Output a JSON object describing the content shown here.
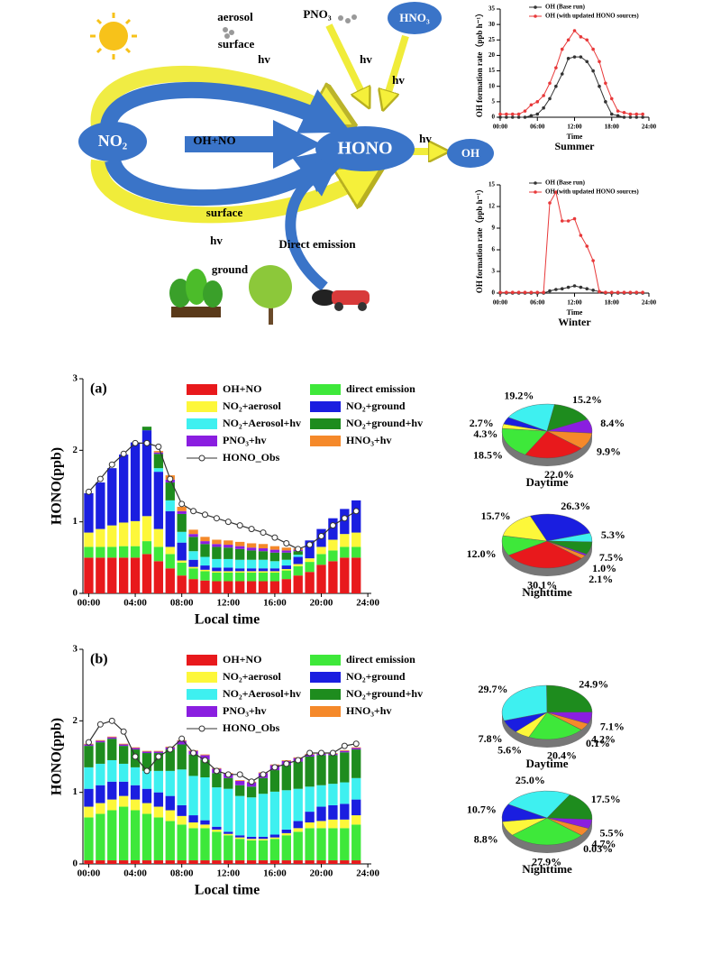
{
  "diagram": {
    "labels": [
      "aerosol",
      "surface",
      "PNO₃",
      "HNO₃",
      "hv",
      "hv",
      "hv",
      "NO₂",
      "OH+NO",
      "HONO",
      "hv",
      "OH",
      "surface",
      "hv",
      "Direct emission",
      "ground"
    ]
  },
  "chart_data": [
    {
      "type": "line",
      "title": "Summer",
      "x_label": "Time",
      "y_label": "OH formation rate（ppb h⁻¹）",
      "x": [
        0,
        1,
        2,
        3,
        4,
        5,
        6,
        7,
        8,
        9,
        10,
        11,
        12,
        13,
        14,
        15,
        16,
        17,
        18,
        19,
        20,
        21,
        22,
        23
      ],
      "xlim": [
        0,
        24
      ],
      "xticks": [
        {
          "value": 0,
          "label": "00:00"
        },
        {
          "value": 6,
          "label": "06:00"
        },
        {
          "value": 12,
          "label": "12:00"
        },
        {
          "value": 18,
          "label": "18:00"
        },
        {
          "value": 24,
          "label": "24:00"
        }
      ],
      "ylim": [
        0,
        35
      ],
      "yticks": [
        0,
        5,
        10,
        15,
        20,
        25,
        30,
        35
      ],
      "series": [
        {
          "name": "OH (Base run)",
          "color": "#333333",
          "values": [
            0,
            0,
            0,
            0,
            0,
            0.5,
            1,
            3,
            6,
            10,
            14,
            19,
            19.5,
            19.5,
            18,
            15,
            10,
            5,
            1,
            0.5,
            0,
            0,
            0,
            0
          ]
        },
        {
          "name": "OH (with updated HONO sources)",
          "color": "#e8393a",
          "values": [
            1,
            1,
            1,
            1,
            2,
            4,
            5,
            7,
            11,
            16,
            22,
            25,
            28,
            26,
            25,
            22,
            18,
            11,
            6,
            2,
            1.5,
            1,
            1,
            1
          ]
        }
      ]
    },
    {
      "type": "line",
      "title": "Winter",
      "x_label": "Time",
      "y_label": "OH formation rate（ppb h⁻¹）",
      "x": [
        0,
        1,
        2,
        3,
        4,
        5,
        6,
        7,
        8,
        9,
        10,
        11,
        12,
        13,
        14,
        15,
        16,
        17,
        18,
        19,
        20,
        21,
        22,
        23
      ],
      "xlim": [
        0,
        24
      ],
      "xticks": [
        {
          "value": 0,
          "label": "00:00"
        },
        {
          "value": 6,
          "label": "06:00"
        },
        {
          "value": 12,
          "label": "12:00"
        },
        {
          "value": 18,
          "label": "18:00"
        },
        {
          "value": 24,
          "label": "24:00"
        }
      ],
      "ylim": [
        0,
        15
      ],
      "yticks": [
        0,
        3,
        6,
        9,
        12,
        15
      ],
      "series": [
        {
          "name": "OH (Base run)",
          "color": "#333333",
          "values": [
            0,
            0,
            0,
            0,
            0,
            0,
            0,
            0,
            0.3,
            0.5,
            0.6,
            0.8,
            1.0,
            0.8,
            0.6,
            0.4,
            0.2,
            0,
            0,
            0,
            0,
            0,
            0,
            0
          ]
        },
        {
          "name": "OH (with updated HONO sources)",
          "color": "#e8393a",
          "values": [
            0.1,
            0.1,
            0.1,
            0.1,
            0.1,
            0.1,
            0.1,
            0.1,
            12.5,
            14,
            10,
            10,
            10.3,
            8,
            6.5,
            4.5,
            0.2,
            0.1,
            0.1,
            0.1,
            0.1,
            0.1,
            0.1,
            0.1
          ]
        }
      ]
    },
    {
      "type": "stacked_bar",
      "panel_label": "(a)",
      "x_label": "Local time",
      "y_label": "HONO(ppb)",
      "x": [
        0,
        1,
        2,
        3,
        4,
        5,
        6,
        7,
        8,
        9,
        10,
        11,
        12,
        13,
        14,
        15,
        16,
        17,
        18,
        19,
        20,
        21,
        22,
        23
      ],
      "xlim": [
        -0.5,
        24.3
      ],
      "xticks": [
        {
          "value": 0,
          "label": "00:00"
        },
        {
          "value": 4,
          "label": "04:00"
        },
        {
          "value": 8,
          "label": "08:00"
        },
        {
          "value": 12,
          "label": "12:00"
        },
        {
          "value": 16,
          "label": "16:00"
        },
        {
          "value": 20,
          "label": "20:00"
        },
        {
          "value": 24,
          "label": "24:00"
        }
      ],
      "ylim": [
        0,
        3
      ],
      "yticks": [
        0,
        1,
        2,
        3
      ],
      "series": [
        {
          "name": "OH+NO",
          "color": "#e8191c",
          "values": [
            0.5,
            0.5,
            0.5,
            0.5,
            0.5,
            0.55,
            0.45,
            0.35,
            0.25,
            0.2,
            0.18,
            0.17,
            0.17,
            0.17,
            0.17,
            0.17,
            0.17,
            0.2,
            0.25,
            0.3,
            0.4,
            0.45,
            0.5,
            0.5
          ]
        },
        {
          "name": "direct emission",
          "color": "#3ee83a",
          "values": [
            0.15,
            0.15,
            0.15,
            0.16,
            0.16,
            0.18,
            0.2,
            0.2,
            0.18,
            0.15,
            0.13,
            0.12,
            0.12,
            0.12,
            0.12,
            0.12,
            0.12,
            0.12,
            0.13,
            0.14,
            0.15,
            0.15,
            0.15,
            0.15
          ]
        },
        {
          "name": "NO₂+aerosol",
          "color": "#fdf73a",
          "values": [
            0.2,
            0.25,
            0.3,
            0.33,
            0.35,
            0.35,
            0.25,
            0.1,
            0.03,
            0.02,
            0.02,
            0.02,
            0.02,
            0.02,
            0.02,
            0.02,
            0.02,
            0.02,
            0.03,
            0.05,
            0.1,
            0.15,
            0.18,
            0.2
          ]
        },
        {
          "name": "NO₂+ground",
          "color": "#1a1ee0",
          "values": [
            0.55,
            0.65,
            0.8,
            0.95,
            1.1,
            1.2,
            0.8,
            0.5,
            0.25,
            0.1,
            0.06,
            0.05,
            0.05,
            0.04,
            0.04,
            0.04,
            0.04,
            0.05,
            0.1,
            0.25,
            0.25,
            0.3,
            0.35,
            0.45
          ]
        },
        {
          "name": "NO₂+Aerosol+hv",
          "color": "#3ef0f0",
          "values": [
            0,
            0,
            0,
            0,
            0,
            0,
            0.05,
            0.15,
            0.15,
            0.12,
            0.12,
            0.12,
            0.12,
            0.12,
            0.12,
            0.12,
            0.1,
            0.08,
            0.03,
            0,
            0,
            0,
            0,
            0
          ]
        },
        {
          "name": "NO₂+ground+hv",
          "color": "#1e8c1e",
          "values": [
            0,
            0,
            0,
            0,
            0,
            0.05,
            0.2,
            0.25,
            0.25,
            0.2,
            0.18,
            0.17,
            0.16,
            0.15,
            0.13,
            0.12,
            0.12,
            0.1,
            0.05,
            0,
            0,
            0,
            0,
            0
          ]
        },
        {
          "name": "PNO₃+hv",
          "color": "#8a1ee0",
          "values": [
            0,
            0,
            0,
            0,
            0,
            0,
            0.02,
            0.04,
            0.04,
            0.04,
            0.04,
            0.04,
            0.04,
            0.04,
            0.04,
            0.04,
            0.04,
            0.03,
            0.02,
            0,
            0,
            0,
            0,
            0
          ]
        },
        {
          "name": "HNO₃+hv",
          "color": "#f5892a",
          "values": [
            0,
            0,
            0,
            0,
            0,
            0,
            0.02,
            0.06,
            0.06,
            0.06,
            0.06,
            0.06,
            0.06,
            0.06,
            0.06,
            0.06,
            0.05,
            0.04,
            0.02,
            0,
            0,
            0,
            0,
            0
          ]
        }
      ],
      "line_series": {
        "name": "HONO_Obs",
        "color": "#333333",
        "values": [
          1.42,
          1.6,
          1.8,
          1.95,
          2.1,
          2.1,
          2.05,
          1.6,
          1.25,
          1.15,
          1.1,
          1.05,
          1.0,
          0.95,
          0.9,
          0.85,
          0.78,
          0.7,
          0.62,
          0.68,
          0.8,
          0.95,
          1.05,
          1.15
        ]
      }
    },
    {
      "type": "pie",
      "title": "Daytime",
      "values": [
        22.0,
        18.5,
        2.7,
        4.3,
        19.2,
        15.2,
        8.4,
        9.9
      ],
      "value_labels": [
        "22.0%",
        "18.5%",
        "2.7%",
        "4.3%",
        "19.2%",
        "15.2%",
        "8.4%",
        "9.9%"
      ],
      "colors": [
        "#e8191c",
        "#3ee83a",
        "#fdf73a",
        "#1a1ee0",
        "#3ef0f0",
        "#1e8c1e",
        "#8a1ee0",
        "#f5892a"
      ]
    },
    {
      "type": "pie",
      "title": "Nighttime",
      "values": [
        30.1,
        12.0,
        15.7,
        26.3,
        5.3,
        7.5,
        1.0,
        2.1
      ],
      "value_labels": [
        "30.1%",
        "12.0%",
        "15.7%",
        "26.3%",
        "5.3%",
        "7.5%",
        "1.0%",
        "2.1%"
      ],
      "colors": [
        "#e8191c",
        "#3ee83a",
        "#fdf73a",
        "#1a1ee0",
        "#3ef0f0",
        "#1e8c1e",
        "#8a1ee0",
        "#f5892a"
      ]
    },
    {
      "type": "stacked_bar",
      "panel_label": "(b)",
      "x_label": "Local time",
      "y_label": "HONO(ppb)",
      "x": [
        0,
        1,
        2,
        3,
        4,
        5,
        6,
        7,
        8,
        9,
        10,
        11,
        12,
        13,
        14,
        15,
        16,
        17,
        18,
        19,
        20,
        21,
        22,
        23
      ],
      "xlim": [
        -0.5,
        24.3
      ],
      "xticks": [
        {
          "value": 0,
          "label": "00:00"
        },
        {
          "value": 4,
          "label": "04:00"
        },
        {
          "value": 8,
          "label": "08:00"
        },
        {
          "value": 12,
          "label": "12:00"
        },
        {
          "value": 16,
          "label": "16:00"
        },
        {
          "value": 20,
          "label": "20:00"
        },
        {
          "value": 24,
          "label": "24:00"
        }
      ],
      "ylim": [
        0,
        3
      ],
      "yticks": [
        0,
        1,
        2,
        3
      ],
      "series": [
        {
          "name": "OH+NO",
          "color": "#e8191c",
          "values": [
            0.05,
            0.05,
            0.05,
            0.05,
            0.05,
            0.05,
            0.05,
            0.05,
            0.05,
            0.05,
            0.05,
            0.05,
            0.05,
            0.05,
            0.05,
            0.05,
            0.05,
            0.05,
            0.05,
            0.05,
            0.05,
            0.05,
            0.05,
            0.05
          ]
        },
        {
          "name": "direct emission",
          "color": "#3ee83a",
          "values": [
            0.6,
            0.65,
            0.7,
            0.75,
            0.7,
            0.65,
            0.6,
            0.55,
            0.5,
            0.45,
            0.45,
            0.4,
            0.35,
            0.3,
            0.28,
            0.28,
            0.3,
            0.35,
            0.4,
            0.45,
            0.45,
            0.45,
            0.45,
            0.5
          ]
        },
        {
          "name": "NO₂+aerosol",
          "color": "#fdf73a",
          "values": [
            0.15,
            0.15,
            0.15,
            0.15,
            0.15,
            0.15,
            0.15,
            0.15,
            0.12,
            0.08,
            0.05,
            0.03,
            0.02,
            0.02,
            0.02,
            0.02,
            0.02,
            0.03,
            0.05,
            0.08,
            0.1,
            0.12,
            0.12,
            0.13
          ]
        },
        {
          "name": "NO₂+ground",
          "color": "#1a1ee0",
          "values": [
            0.25,
            0.25,
            0.25,
            0.2,
            0.2,
            0.2,
            0.2,
            0.2,
            0.15,
            0.1,
            0.06,
            0.04,
            0.03,
            0.03,
            0.03,
            0.03,
            0.04,
            0.05,
            0.1,
            0.15,
            0.2,
            0.2,
            0.22,
            0.22
          ]
        },
        {
          "name": "NO₂+Aerosol+hv",
          "color": "#3ef0f0",
          "values": [
            0.3,
            0.3,
            0.3,
            0.25,
            0.25,
            0.25,
            0.3,
            0.35,
            0.5,
            0.55,
            0.6,
            0.55,
            0.6,
            0.55,
            0.55,
            0.6,
            0.6,
            0.55,
            0.45,
            0.35,
            0.3,
            0.3,
            0.3,
            0.3
          ]
        },
        {
          "name": "NO₂+ground+hv",
          "color": "#1e8c1e",
          "values": [
            0.3,
            0.3,
            0.3,
            0.25,
            0.25,
            0.25,
            0.25,
            0.3,
            0.35,
            0.3,
            0.25,
            0.2,
            0.15,
            0.15,
            0.15,
            0.22,
            0.3,
            0.35,
            0.38,
            0.42,
            0.42,
            0.4,
            0.42,
            0.4
          ]
        },
        {
          "name": "PNO₃+hv",
          "color": "#8a1ee0",
          "values": [
            0.02,
            0.02,
            0.02,
            0.02,
            0.02,
            0.02,
            0.02,
            0.03,
            0.05,
            0.05,
            0.06,
            0.06,
            0.06,
            0.06,
            0.06,
            0.07,
            0.07,
            0.06,
            0.05,
            0.03,
            0.02,
            0.02,
            0.02,
            0.02
          ]
        },
        {
          "name": "HNO₃+hv",
          "color": "#f5892a",
          "values": [
            0.01,
            0.01,
            0.01,
            0.01,
            0.01,
            0.01,
            0.01,
            0.01,
            0.01,
            0.01,
            0.01,
            0.01,
            0.01,
            0.01,
            0.01,
            0.01,
            0.01,
            0.01,
            0.01,
            0.01,
            0.01,
            0.01,
            0.01,
            0.01
          ]
        }
      ],
      "line_series": {
        "name": "HONO_Obs",
        "color": "#333333",
        "values": [
          1.7,
          1.95,
          2.0,
          1.85,
          1.5,
          1.3,
          1.5,
          1.6,
          1.75,
          1.55,
          1.45,
          1.3,
          1.25,
          1.25,
          1.15,
          1.25,
          1.35,
          1.4,
          1.45,
          1.55,
          1.55,
          1.55,
          1.65,
          1.68
        ]
      }
    },
    {
      "type": "pie",
      "title": "Daytime",
      "values": [
        0.1,
        20.4,
        5.6,
        7.8,
        29.7,
        24.9,
        7.1,
        4.2
      ],
      "value_labels": [
        "0.1%",
        "20.4%",
        "5.6%",
        "7.8%",
        "29.7%",
        "24.9%",
        "7.1%",
        "4.2%"
      ],
      "colors": [
        "#e8191c",
        "#3ee83a",
        "#fdf73a",
        "#1a1ee0",
        "#3ef0f0",
        "#1e8c1e",
        "#8a1ee0",
        "#f5892a"
      ]
    },
    {
      "type": "pie",
      "title": "Nighttime",
      "values": [
        0.03,
        27.9,
        8.8,
        10.7,
        25.0,
        17.5,
        5.5,
        4.7
      ],
      "value_labels": [
        "0.03%",
        "27.9%",
        "8.8%",
        "10.7%",
        "25.0%",
        "17.5%",
        "5.5%",
        "4.7%"
      ],
      "colors": [
        "#e8191c",
        "#3ee83a",
        "#fdf73a",
        "#1a1ee0",
        "#3ef0f0",
        "#1e8c1e",
        "#8a1ee0",
        "#f5892a"
      ]
    }
  ]
}
